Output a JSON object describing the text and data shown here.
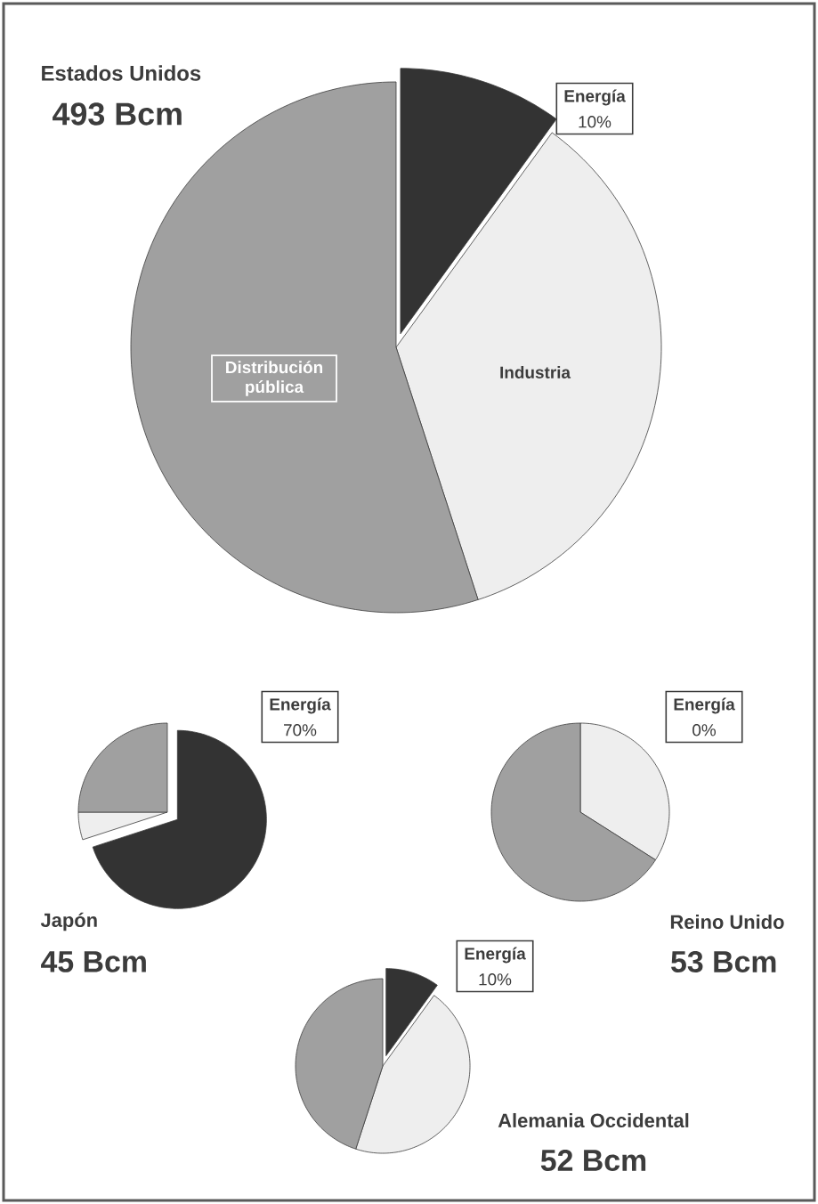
{
  "chart_data": [
    {
      "type": "pie",
      "title": "Estados Unidos",
      "subtitle": "493 Bcm",
      "categories": [
        "Energía",
        "Industria",
        "Distribución pública"
      ],
      "values": [
        10,
        35,
        55
      ],
      "colors": [
        "#333333",
        "#eeeeee",
        "#a0a0a0"
      ],
      "value_labels": [
        "10%",
        null,
        null
      ]
    },
    {
      "type": "pie",
      "title": "Japón",
      "subtitle": "45 Bcm",
      "categories": [
        "Energía",
        null,
        null
      ],
      "values": [
        70,
        5,
        25
      ],
      "colors": [
        "#333333",
        "#eeeeee",
        "#a0a0a0"
      ],
      "value_labels": [
        "70%",
        null,
        null
      ]
    },
    {
      "type": "pie",
      "title": "Reino Unido",
      "subtitle": "53 Bcm",
      "categories": [
        "Energía",
        null,
        null
      ],
      "values": [
        0,
        34,
        66
      ],
      "colors": [
        "#333333",
        "#eeeeee",
        "#a0a0a0"
      ],
      "value_labels": [
        "0%",
        null,
        null
      ]
    },
    {
      "type": "pie",
      "title": "Alemania Occidental",
      "subtitle": "52 Bcm",
      "categories": [
        "Energía",
        null,
        null
      ],
      "values": [
        10,
        45,
        45
      ],
      "colors": [
        "#333333",
        "#eeeeee",
        "#a0a0a0"
      ],
      "value_labels": [
        "10%",
        null,
        null
      ]
    }
  ]
}
